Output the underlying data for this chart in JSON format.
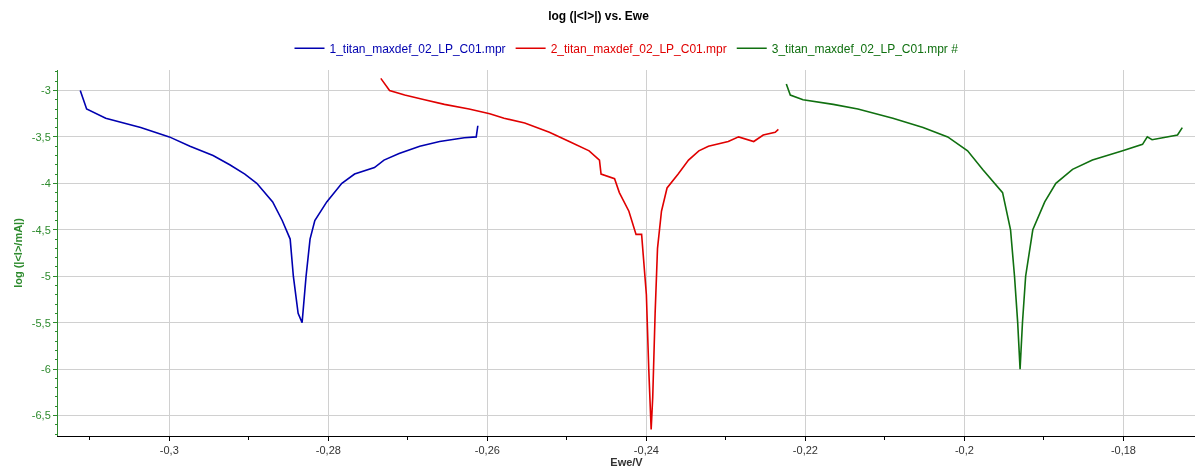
{
  "chart_data": {
    "type": "line",
    "title": "log (|<I>|) vs. Ewe",
    "xlabel": "Ewe/V",
    "ylabel": "log (|<I>/mA|)",
    "xlim": [
      -0.314,
      -0.171
    ],
    "ylim": [
      -6.72,
      -2.78
    ],
    "xticks": [
      {
        "value": -0.3,
        "label": "-0,3"
      },
      {
        "value": -0.28,
        "label": "-0,28"
      },
      {
        "value": -0.26,
        "label": "-0,26"
      },
      {
        "value": -0.24,
        "label": "-0,24"
      },
      {
        "value": -0.22,
        "label": "-0,22"
      },
      {
        "value": -0.2,
        "label": "-0,2"
      },
      {
        "value": -0.18,
        "label": "-0,18"
      }
    ],
    "yticks": [
      -3,
      {
        "value": -3.5,
        "label": "-3,5"
      },
      -4,
      {
        "value": -4.5,
        "label": "-4,5"
      },
      -5,
      {
        "value": -5.5,
        "label": "-5,5"
      },
      -6,
      {
        "value": -6.5,
        "label": "-6,5"
      }
    ],
    "grid": true,
    "legend": "top",
    "marker": "none",
    "line_style": "solid",
    "series": [
      {
        "name": "1_titan_maxdef_02_LP_C01.mpr",
        "color": "#0000b0",
        "x": [
          -0.3112,
          -0.3104,
          -0.308,
          -0.3036,
          -0.3,
          -0.2974,
          -0.2945,
          -0.2924,
          -0.2905,
          -0.289,
          -0.287,
          -0.2858,
          -0.2848,
          -0.2844,
          -0.2838,
          -0.2833,
          -0.2828,
          -0.2823,
          -0.2817,
          -0.2802,
          -0.2783,
          -0.2767,
          -0.2742,
          -0.273,
          -0.2711,
          -0.2685,
          -0.266,
          -0.2629,
          -0.2614,
          -0.2612
        ],
        "values": [
          -3.0,
          -3.2,
          -3.3,
          -3.4,
          -3.5,
          -3.6,
          -3.7,
          -3.8,
          -3.9,
          -4.0,
          -4.2,
          -4.4,
          -4.6,
          -5.0,
          -5.4,
          -5.5,
          -5.0,
          -4.6,
          -4.4,
          -4.2,
          -4.0,
          -3.9,
          -3.83,
          -3.75,
          -3.68,
          -3.6,
          -3.55,
          -3.51,
          -3.5,
          -3.38
        ]
      },
      {
        "name": "2_titan_maxdef_02_LP_C01.mpr",
        "color": "#e00000",
        "x": [
          -0.2734,
          -0.2723,
          -0.2704,
          -0.2679,
          -0.2654,
          -0.2623,
          -0.2597,
          -0.2579,
          -0.2553,
          -0.2522,
          -0.2497,
          -0.2472,
          -0.2459,
          -0.2457,
          -0.244,
          -0.2434,
          -0.2422,
          -0.2413,
          -0.2406,
          -0.24,
          -0.2397,
          -0.2394,
          -0.2392,
          -0.2389,
          -0.2386,
          -0.2381,
          -0.2374,
          -0.236,
          -0.2347,
          -0.2334,
          -0.2322,
          -0.2297,
          -0.2284,
          -0.2265,
          -0.2253,
          -0.2238,
          -0.2234
        ],
        "values": [
          -2.87,
          -3.0,
          -3.05,
          -3.1,
          -3.15,
          -3.2,
          -3.25,
          -3.3,
          -3.35,
          -3.45,
          -3.55,
          -3.65,
          -3.75,
          -3.9,
          -3.95,
          -4.1,
          -4.3,
          -4.55,
          -4.55,
          -5.2,
          -6.0,
          -6.65,
          -6.3,
          -5.4,
          -4.7,
          -4.3,
          -4.05,
          -3.9,
          -3.75,
          -3.65,
          -3.6,
          -3.55,
          -3.5,
          -3.55,
          -3.48,
          -3.45,
          -3.42
        ]
      },
      {
        "name": "3_titan_maxdef_02_LP_C01.mpr #",
        "color": "#107010",
        "x": [
          -0.2224,
          -0.2219,
          -0.2203,
          -0.2165,
          -0.2134,
          -0.209,
          -0.2052,
          -0.2021,
          -0.1996,
          -0.1977,
          -0.1952,
          -0.1942,
          -0.1937,
          -0.1933,
          -0.193,
          -0.1927,
          -0.1923,
          -0.1914,
          -0.1899,
          -0.1885,
          -0.1864,
          -0.1839,
          -0.1801,
          -0.1776,
          -0.177,
          -0.1764,
          -0.1732,
          -0.1726
        ],
        "values": [
          -2.93,
          -3.05,
          -3.1,
          -3.15,
          -3.2,
          -3.3,
          -3.4,
          -3.5,
          -3.65,
          -3.85,
          -4.1,
          -4.5,
          -5.0,
          -5.5,
          -6.0,
          -5.5,
          -5.0,
          -4.5,
          -4.2,
          -4.0,
          -3.85,
          -3.75,
          -3.65,
          -3.58,
          -3.5,
          -3.53,
          -3.48,
          -3.4
        ]
      }
    ]
  }
}
